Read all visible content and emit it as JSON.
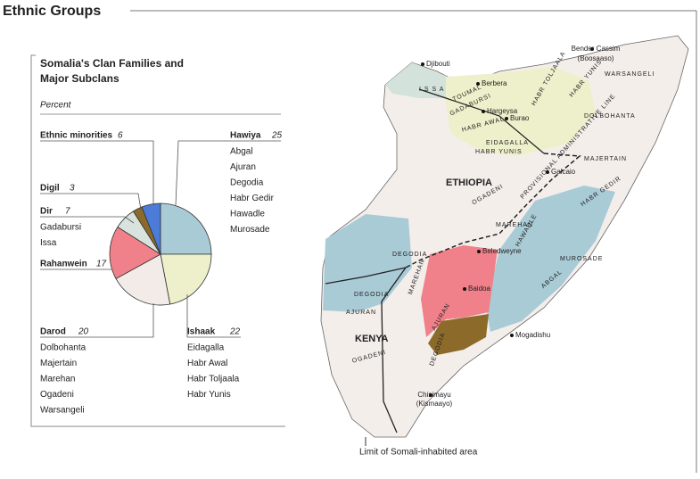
{
  "title": "Ethnic Groups",
  "chart_data": {
    "type": "pie",
    "title": "Somalia's Clan Families and Major Subclans",
    "subtitle": "Percent",
    "categories": [
      "Hawiya",
      "Ishaak",
      "Darod",
      "Rahanwein",
      "Dir",
      "Digil",
      "Ethnic minorities"
    ],
    "values": [
      25,
      22,
      20,
      17,
      7,
      3,
      6
    ],
    "colors": [
      "#a9cbd6",
      "#eef0cb",
      "#f3ebe8",
      "#f08089",
      "#d9e3dd",
      "#8c6b2a",
      "#4c7bd8"
    ],
    "subclans": [
      [
        "Abgal",
        "Ajuran",
        "Degodia",
        "Habr Gedir",
        "Hawadle",
        "Murosade"
      ],
      [
        "Eidagalla",
        "Habr Awal",
        "Habr Toljaala",
        "Habr Yunis"
      ],
      [
        "Dolbohanta",
        "Majertain",
        "Marehan",
        "Ogadeni",
        "Warsangeli"
      ],
      [],
      [
        "Gadabursi",
        "Issa"
      ],
      [],
      []
    ]
  },
  "map": {
    "labels": [
      "Djibouti",
      "Berbera",
      "Bender Cassim",
      "(Boosaaso)",
      "Warsangeli",
      "Hargeysa",
      "Burao",
      "I S S A",
      "Toumal",
      "Gadabursi",
      "Habr Awal",
      "Eidagalla",
      "Habr Yunis",
      "Habr Toljaala",
      "Habr Yunis",
      "Dolbohanta",
      "ETHIOPIA",
      "Ogadeni",
      "Majertain",
      "Galcaio",
      "Provisional Administrative Line",
      "Habr Gedir",
      "Marehan",
      "Hawadle",
      "Beledweyne",
      "Murosade",
      "Abgal",
      "Degodia",
      "Degodia",
      "Ajuran",
      "Marehan",
      "Baidoa",
      "Ajuran",
      "Mogadishu",
      "KENYA",
      "Ogadeni",
      "Chisimayu",
      "(Kismaayo)",
      "Degodia"
    ],
    "note": "Limit of Somali-inhabited area"
  }
}
